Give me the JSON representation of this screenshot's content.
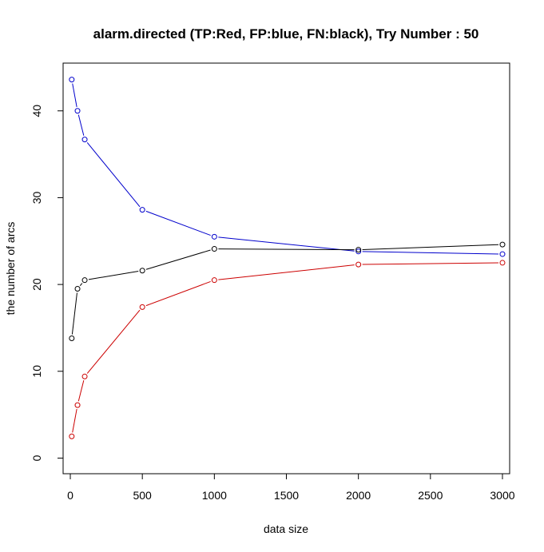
{
  "chart_data": {
    "type": "line",
    "title": "alarm.directed  (TP:Red, FP:blue, FN:black),  Try Number :  50",
    "xlabel": "data size",
    "ylabel": "the number of arcs",
    "xlim": [
      -50,
      3050
    ],
    "ylim": [
      -1.8,
      45.5
    ],
    "xticks": [
      0,
      500,
      1000,
      1500,
      2000,
      2500,
      3000
    ],
    "yticks": [
      0,
      10,
      20,
      30,
      40
    ],
    "x": [
      10,
      50,
      100,
      500,
      1000,
      2000,
      3000
    ],
    "series": [
      {
        "color": "#0000cc",
        "values": [
          43.6,
          40.0,
          36.7,
          28.6,
          25.5,
          23.8,
          23.5
        ]
      },
      {
        "color": "#000000",
        "values": [
          13.8,
          19.5,
          20.5,
          21.6,
          24.1,
          24.0,
          24.6
        ]
      },
      {
        "color": "#cc0000",
        "values": [
          2.5,
          6.1,
          9.4,
          17.4,
          20.5,
          22.3,
          22.5
        ]
      }
    ]
  }
}
